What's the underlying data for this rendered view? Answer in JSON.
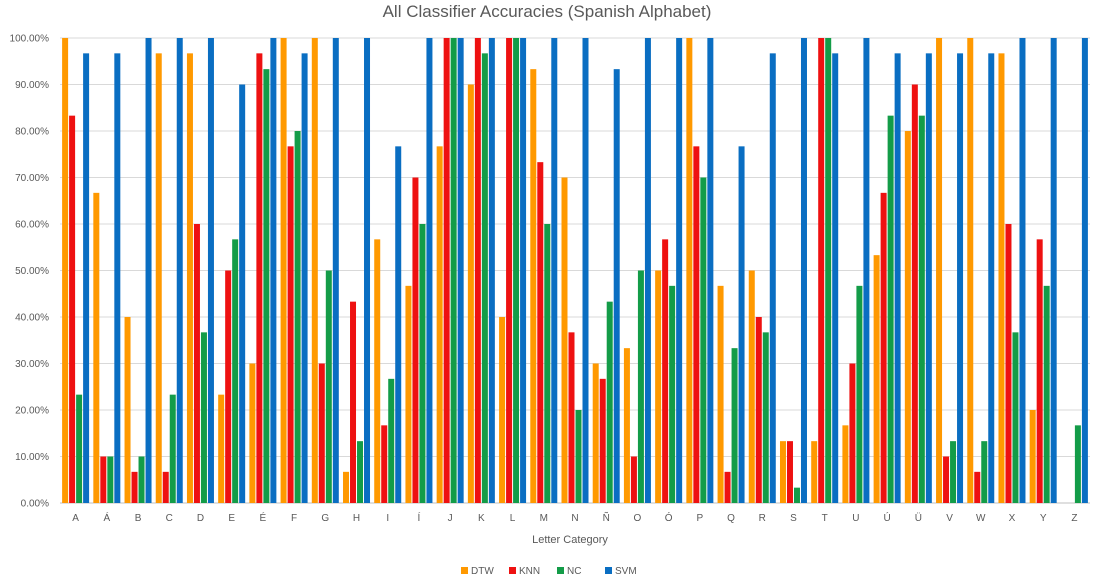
{
  "chart_data": {
    "type": "bar",
    "title": "All Classifier Accuracies (Spanish Alphabet)",
    "xlabel": "Letter Category",
    "ylabel": "",
    "ylim": [
      0,
      1
    ],
    "y_ticks": [
      "0.00%",
      "10.00%",
      "20.00%",
      "30.00%",
      "40.00%",
      "50.00%",
      "60.00%",
      "70.00%",
      "80.00%",
      "90.00%",
      "100.00%"
    ],
    "grid": true,
    "legend_position": "bottom",
    "categories": [
      "A",
      "Á",
      "B",
      "C",
      "D",
      "E",
      "É",
      "F",
      "G",
      "H",
      "I",
      "Í",
      "J",
      "K",
      "L",
      "M",
      "N",
      "Ñ",
      "O",
      "Ó",
      "P",
      "Q",
      "R",
      "S",
      "T",
      "U",
      "Ú",
      "Ü",
      "V",
      "W",
      "X",
      "Y",
      "Z"
    ],
    "series": [
      {
        "name": "DTW",
        "color": "#FF9900",
        "values": [
          1.0,
          0.667,
          0.4,
          0.967,
          0.967,
          0.233,
          0.3,
          1.0,
          1.0,
          0.067,
          0.567,
          0.467,
          0.767,
          0.9,
          0.4,
          0.933,
          0.7,
          0.3,
          0.333,
          0.5,
          1.0,
          0.467,
          0.5,
          0.133,
          0.133,
          0.167,
          0.533,
          0.8,
          1.0,
          1.0,
          0.967,
          0.2,
          0.0
        ]
      },
      {
        "name": "KNN",
        "color": "#EE1111",
        "values": [
          0.833,
          0.1,
          0.067,
          0.067,
          0.6,
          0.5,
          0.967,
          0.767,
          0.3,
          0.433,
          0.167,
          0.7,
          1.0,
          1.0,
          1.0,
          0.733,
          0.367,
          0.267,
          0.1,
          0.567,
          0.767,
          0.067,
          0.4,
          0.133,
          1.0,
          0.3,
          0.667,
          0.9,
          0.1,
          0.067,
          0.6,
          0.567,
          0.0
        ]
      },
      {
        "name": "NC",
        "color": "#139C48",
        "values": [
          0.233,
          0.1,
          0.1,
          0.233,
          0.367,
          0.567,
          0.933,
          0.8,
          0.5,
          0.133,
          0.267,
          0.6,
          1.0,
          0.967,
          1.0,
          0.6,
          0.2,
          0.433,
          0.5,
          0.467,
          0.7,
          0.333,
          0.367,
          0.033,
          1.0,
          0.467,
          0.833,
          0.833,
          0.133,
          0.133,
          0.367,
          0.467,
          0.167
        ]
      },
      {
        "name": "SVM",
        "color": "#0A6EC2",
        "values": [
          0.967,
          0.967,
          1.0,
          1.0,
          1.0,
          0.9,
          1.0,
          0.967,
          1.0,
          1.0,
          0.767,
          1.0,
          1.0,
          1.0,
          1.0,
          1.0,
          1.0,
          0.933,
          1.0,
          1.0,
          1.0,
          0.767,
          0.967,
          1.0,
          0.967,
          1.0,
          0.967,
          0.967,
          0.967,
          0.967,
          1.0,
          1.0,
          1.0
        ]
      }
    ]
  }
}
